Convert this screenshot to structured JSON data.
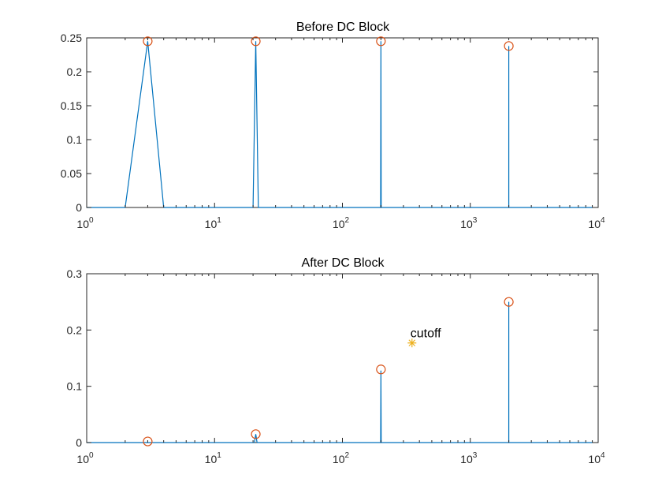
{
  "chart_data": [
    {
      "type": "line",
      "title": "Before DC Block",
      "xscale": "log",
      "xlim": [
        1,
        10000
      ],
      "ylim": [
        0,
        0.25
      ],
      "xticks": [
        {
          "base": "10",
          "exp": "0"
        },
        {
          "base": "10",
          "exp": "1"
        },
        {
          "base": "10",
          "exp": "2"
        },
        {
          "base": "10",
          "exp": "3"
        },
        {
          "base": "10",
          "exp": "4"
        }
      ],
      "yticks": [
        "0",
        "0.05",
        "0.1",
        "0.15",
        "0.2",
        "0.25"
      ],
      "grid": false,
      "series": [
        {
          "color": "#0072BD",
          "x": [
            1,
            2,
            3,
            4,
            20,
            21,
            22,
            199,
            200,
            201,
            1999,
            2000,
            2001,
            9000
          ],
          "y": [
            0,
            0,
            0.245,
            0,
            0,
            0.245,
            0,
            0,
            0.245,
            0,
            0,
            0.238,
            0,
            0
          ]
        },
        {
          "color": "#D95319",
          "marker": "circle",
          "x": [
            3,
            21,
            200,
            2000
          ],
          "y": [
            0.245,
            0.245,
            0.245,
            0.238
          ]
        }
      ]
    },
    {
      "type": "line",
      "title": "After DC Block",
      "xscale": "log",
      "xlim": [
        1,
        10000
      ],
      "ylim": [
        0,
        0.3
      ],
      "xticks": [
        {
          "base": "10",
          "exp": "0"
        },
        {
          "base": "10",
          "exp": "1"
        },
        {
          "base": "10",
          "exp": "2"
        },
        {
          "base": "10",
          "exp": "3"
        },
        {
          "base": "10",
          "exp": "4"
        }
      ],
      "yticks": [
        "0",
        "0.1",
        "0.2",
        "0.3"
      ],
      "grid": false,
      "series": [
        {
          "color": "#0072BD",
          "x": [
            1,
            20.5,
            21,
            21.5,
            199,
            200,
            201,
            1999,
            2000,
            2001,
            9000
          ],
          "y": [
            0,
            0,
            0.015,
            0,
            0,
            0.128,
            0,
            0,
            0.25,
            0,
            0
          ]
        },
        {
          "color": "#D95319",
          "marker": "circle",
          "x": [
            3,
            21,
            200,
            2000
          ],
          "y": [
            0.002,
            0.015,
            0.13,
            0.25
          ]
        },
        {
          "color": "#EDB120",
          "marker": "star",
          "x": [
            350
          ],
          "y": [
            0.177
          ]
        }
      ],
      "annotations": [
        {
          "text": "cutoff",
          "x": 350,
          "y": 0.177
        }
      ]
    }
  ]
}
